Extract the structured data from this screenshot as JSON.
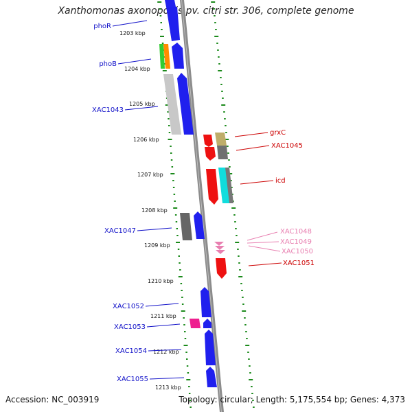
{
  "title": "Xanthomonas axonopodis pv. citri str. 306, complete genome",
  "footer": {
    "accession": "Accession: NC_003919",
    "topology": "Topology: circular; Length: 5,175,554 bp; Genes: 4,373"
  },
  "colors": {
    "ticks": "#1b8a1b",
    "backbone": "#8c8c8c",
    "forward_label": "#1010c8",
    "reverse_label": "#cc0000",
    "light_label": "#e87fb0"
  },
  "kbp_labels": [
    "1203 kbp",
    "1204 kbp",
    "1205 kbp",
    "1206 kbp",
    "1207 kbp",
    "1208 kbp",
    "1209 kbp",
    "1210 kbp",
    "1211 kbp",
    "1212 kbp",
    "1213 kbp"
  ],
  "left_labels": [
    {
      "text": "phoR",
      "color": "#1010c8"
    },
    {
      "text": "phoB",
      "color": "#1010c8"
    },
    {
      "text": "XAC1043",
      "color": "#1010c8"
    },
    {
      "text": "XAC1047",
      "color": "#1010c8"
    },
    {
      "text": "XAC1052",
      "color": "#1010c8"
    },
    {
      "text": "XAC1053",
      "color": "#1010c8"
    },
    {
      "text": "XAC1054",
      "color": "#1010c8"
    },
    {
      "text": "XAC1055",
      "color": "#1010c8"
    }
  ],
  "right_labels": [
    {
      "text": "grxC",
      "color": "#cc0000"
    },
    {
      "text": "XAC1045",
      "color": "#cc0000"
    },
    {
      "text": "icd",
      "color": "#cc0000"
    },
    {
      "text": "XAC1048",
      "color": "#e87fb0"
    },
    {
      "text": "XAC1049",
      "color": "#e87fb0"
    },
    {
      "text": "XAC1050",
      "color": "#e87fb0"
    },
    {
      "text": "XAC1051",
      "color": "#cc0000"
    }
  ]
}
